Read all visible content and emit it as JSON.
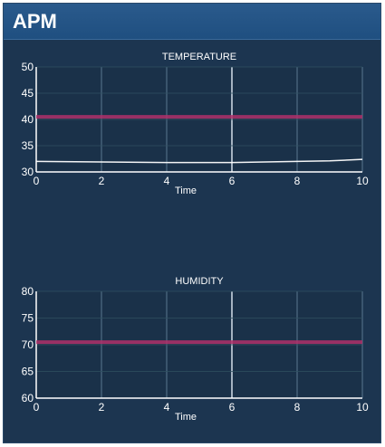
{
  "window": {
    "title": "APM"
  },
  "chart_data": [
    {
      "type": "line",
      "title": "TEMPERATURE",
      "xlabel": "Time",
      "ylabel": "",
      "xlim": [
        0,
        10
      ],
      "ylim": [
        30,
        50
      ],
      "x_ticks": [
        "0",
        "2",
        "4",
        "6",
        "8",
        "10"
      ],
      "y_ticks": [
        "30",
        "35",
        "40",
        "45",
        "50"
      ],
      "grid": true,
      "series": [
        {
          "color": "#ffffff",
          "x": [
            0,
            2,
            4,
            6,
            8,
            9,
            10
          ],
          "values": [
            32.0,
            31.9,
            31.8,
            31.8,
            32.0,
            32.1,
            32.4
          ]
        },
        {
          "color": "#b0306a",
          "x": [
            0,
            10
          ],
          "values": [
            40.5,
            40.5
          ]
        }
      ]
    },
    {
      "type": "line",
      "title": "HUMIDITY",
      "xlabel": "Time",
      "ylabel": "",
      "xlim": [
        0,
        10
      ],
      "ylim": [
        60,
        80
      ],
      "x_ticks": [
        "0",
        "2",
        "4",
        "6",
        "8",
        "10"
      ],
      "y_ticks": [
        "60",
        "65",
        "70",
        "75",
        "80"
      ],
      "grid": true,
      "series": [
        {
          "color": "#b0306a",
          "x": [
            0,
            10
          ],
          "values": [
            70.5,
            70.5
          ]
        }
      ]
    }
  ]
}
